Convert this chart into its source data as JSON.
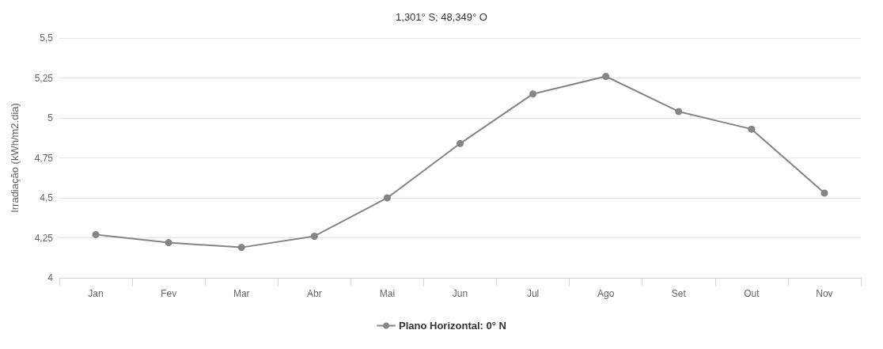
{
  "chart_data": {
    "type": "line",
    "title": "1,301° S; 48,349° O",
    "ylabel": "Irradiação (kWh/m2.dia)",
    "categories": [
      "Jan",
      "Fev",
      "Mar",
      "Abr",
      "Mai",
      "Jun",
      "Jul",
      "Ago",
      "Set",
      "Out",
      "Nov"
    ],
    "series": [
      {
        "name": "Plano Horizontal: 0° N",
        "color": "#858585",
        "values": [
          4.27,
          4.22,
          4.19,
          4.26,
          4.5,
          4.84,
          5.15,
          5.26,
          5.04,
          4.93,
          4.53
        ]
      }
    ],
    "ylim": [
      4,
      5.5
    ],
    "yticks": [
      4,
      {
        "value": 4.25,
        "label": "4,25"
      },
      {
        "value": 4.5,
        "label": "4,5"
      },
      {
        "value": 4.75,
        "label": "4,75"
      },
      5,
      {
        "value": 5.25,
        "label": "5,25"
      },
      {
        "value": 5.5,
        "label": "5,5"
      }
    ],
    "grid": "y",
    "legend": "bottom",
    "marker": "circle",
    "line_style": "solid"
  }
}
